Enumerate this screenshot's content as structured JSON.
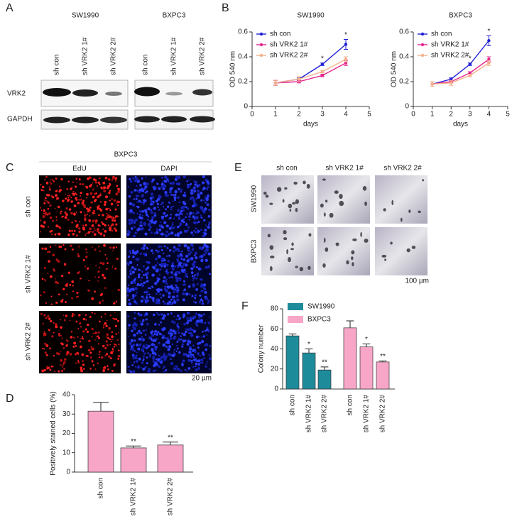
{
  "panel_labels": [
    "A",
    "B",
    "C",
    "D",
    "E",
    "F"
  ],
  "blot": {
    "cell_lines": [
      "SW1990",
      "BXPC3"
    ],
    "lanes": [
      "sh con",
      "sh VRK2  1#",
      "sh VRK2  2#"
    ],
    "proteins": [
      "VRK2",
      "GAPDH"
    ]
  },
  "edu": {
    "cell_line": "BXPC3",
    "stains": [
      "EdU",
      "DAPI"
    ],
    "rows": [
      "sh con",
      "sh VRK2  1#",
      "sh VRK2  2#"
    ],
    "scale_bar": "20 µm"
  },
  "colony_images": {
    "columns": [
      "sh con",
      "sh VRK2  1#",
      "sh VRK2  2#"
    ],
    "rows": [
      "SW1990",
      "BXPC3"
    ],
    "scale_bar": "100 µm"
  },
  "chart_data": [
    {
      "type": "line",
      "title": "SW1990",
      "x_label": "days",
      "y_label": "OD 540 nm",
      "x": [
        1,
        2,
        3,
        4
      ],
      "xlim": [
        0,
        5
      ],
      "xticks": [
        0,
        1,
        2,
        3,
        4,
        5
      ],
      "ylim": [
        0,
        0.6
      ],
      "yticks": [
        0,
        0.2,
        0.4,
        0.6
      ],
      "series": [
        {
          "name": "sh con",
          "color": "#1f1fd6",
          "values": [
            0.19,
            0.22,
            0.34,
            0.5
          ],
          "errors": [
            0.02,
            0.01,
            0.01,
            0.04
          ],
          "significance": [
            null,
            null,
            "*",
            "*"
          ]
        },
        {
          "name": "sh VRK2  1#",
          "color": "#e2258f",
          "values": [
            0.19,
            0.2,
            0.25,
            0.35
          ],
          "errors": [
            0.02,
            0.01,
            0.01,
            0.02
          ]
        },
        {
          "name": "sh VRK2  2#",
          "color": "#f5b08a",
          "values": [
            0.19,
            0.22,
            0.28,
            0.38
          ],
          "errors": [
            0.02,
            0.02,
            0.01,
            0.02
          ]
        }
      ]
    },
    {
      "type": "line",
      "title": "BXPC3",
      "x_label": "days",
      "y_label": "OD 540 nm",
      "x": [
        1,
        2,
        3,
        4
      ],
      "xlim": [
        0,
        5
      ],
      "xticks": [
        0,
        1,
        2,
        3,
        4,
        5
      ],
      "ylim": [
        0,
        0.6
      ],
      "yticks": [
        0,
        0.2,
        0.4,
        0.6
      ],
      "series": [
        {
          "name": "sh con",
          "color": "#1f1fd6",
          "values": [
            0.18,
            0.22,
            0.34,
            0.53
          ],
          "errors": [
            0.02,
            0.01,
            0.01,
            0.04
          ],
          "significance": [
            null,
            null,
            "*",
            "*"
          ]
        },
        {
          "name": "sh VRK2  1#",
          "color": "#e2258f",
          "values": [
            0.18,
            0.2,
            0.27,
            0.38
          ],
          "errors": [
            0.02,
            0.01,
            0.01,
            0.02
          ]
        },
        {
          "name": "sh VRK2  2#",
          "color": "#f5b08a",
          "values": [
            0.18,
            0.19,
            0.25,
            0.35
          ],
          "errors": [
            0.02,
            0.02,
            0.01,
            0.02
          ]
        }
      ]
    },
    {
      "type": "bar",
      "y_label": "Positively stained cells (%)",
      "categories": [
        "sh con",
        "sh VRK2  1#",
        "sh VRK2  2#"
      ],
      "values": [
        31.5,
        12.5,
        14
      ],
      "errors": [
        4.5,
        1,
        1.5
      ],
      "significance": [
        null,
        "**",
        "**"
      ],
      "color": "#f7a6c8",
      "ylim": [
        0,
        40
      ],
      "yticks": [
        0,
        10,
        20,
        30,
        40
      ]
    },
    {
      "type": "bar",
      "y_label": "Colony number",
      "categories": [
        "sh con",
        "sh VRK2  1#",
        "sh VRK2  2#",
        "sh con",
        "sh VRK2  1#",
        "sh VRK2  2#"
      ],
      "ylim": [
        0,
        80
      ],
      "yticks": [
        0,
        20,
        40,
        60,
        80
      ],
      "series": [
        {
          "name": "SW1990",
          "color": "#1e8b9b",
          "values": [
            53,
            36,
            19,
            null,
            null,
            null
          ],
          "errors": [
            2,
            4,
            3,
            null,
            null,
            null
          ],
          "significance": [
            null,
            "*",
            "**",
            null,
            null,
            null
          ]
        },
        {
          "name": "BXPC3",
          "color": "#f7a6c8",
          "values": [
            null,
            null,
            null,
            61,
            42,
            27
          ],
          "errors": [
            null,
            null,
            null,
            7,
            3,
            1
          ],
          "significance": [
            null,
            null,
            null,
            null,
            "*",
            "**"
          ]
        }
      ]
    }
  ]
}
